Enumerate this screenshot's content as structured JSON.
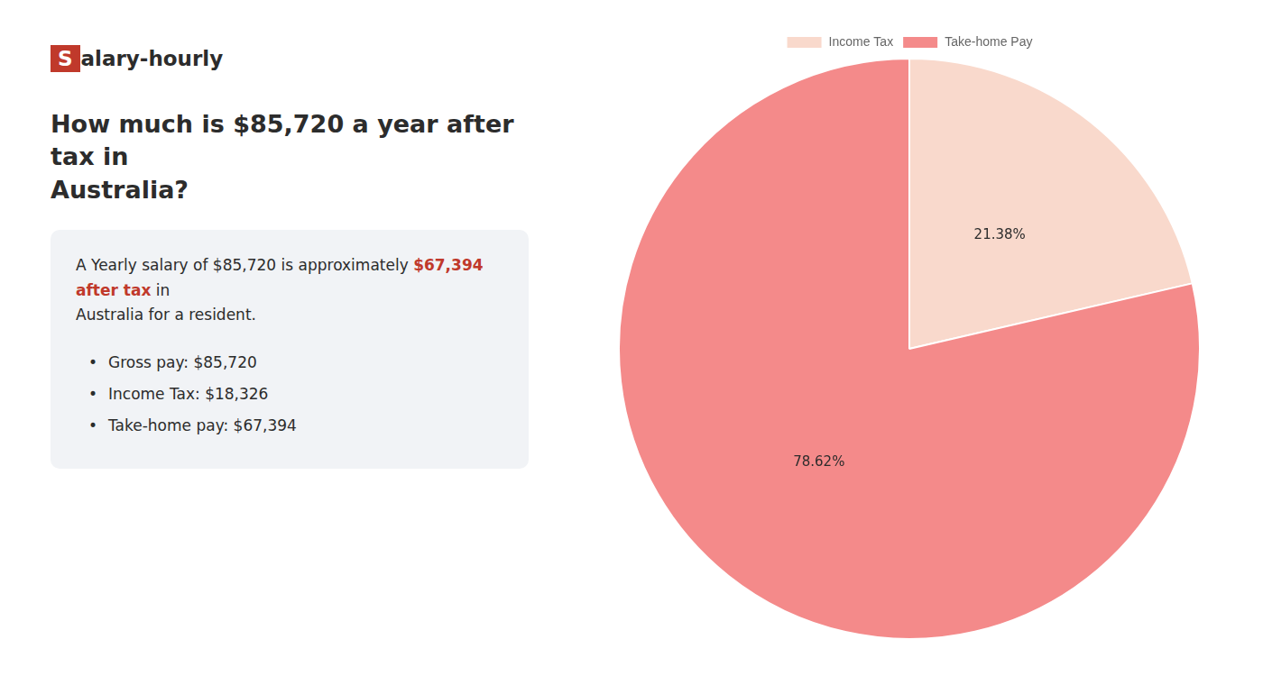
{
  "chart_data": {
    "type": "pie",
    "title": [
      "How much is $85,720 a year after tax in",
      "Australia?"
    ],
    "categories": [
      "Income Tax",
      "Take-home Pay"
    ],
    "values": [
      21.38,
      78.62
    ],
    "value_labels": [
      "21.38%",
      "78.62%"
    ],
    "colors": [
      "#f9d9cc",
      "#f48a8a"
    ],
    "data_labels": true,
    "legend": "top",
    "annotations": [
      [
        {
          "text": "S",
          "color": "#c0392b"
        },
        {
          "text": "alary-hourly"
        }
      ],
      [
        {
          "text": "A Yearly salary of $85,720 is approximately "
        },
        {
          "text": "$67,394 after tax",
          "color": "#c0392b"
        },
        {
          "text": " in"
        }
      ],
      [
        {
          "text": "Australia for a resident."
        }
      ],
      [
        {
          "text": "•"
        },
        {
          "text": "Gross pay: $85,720"
        }
      ],
      [
        {
          "text": "•"
        },
        {
          "text": "Income Tax: $18,326"
        }
      ],
      [
        {
          "text": "•"
        },
        {
          "text": "Take-home pay: $67,394"
        }
      ]
    ]
  }
}
